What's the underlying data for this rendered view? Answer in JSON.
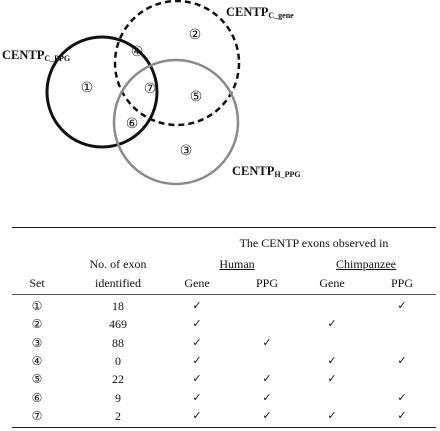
{
  "venn": {
    "sets": [
      {
        "main": "CENTP",
        "sub": "C_PPG",
        "stroke": "#111111",
        "style": "solid"
      },
      {
        "main": "CENTP",
        "sub": "C_gene",
        "stroke": "#111111",
        "style": "dashed"
      },
      {
        "main": "CENTP",
        "sub": "H_PPG",
        "stroke": "#8a8a8a",
        "style": "solid"
      }
    ],
    "regions": [
      "①",
      "②",
      "③",
      "④",
      "⑤",
      "⑥",
      "⑦"
    ]
  },
  "table": {
    "header_span": "The CENTP exons observed in",
    "col_set": "Set",
    "col_count_line1": "No. of exon",
    "col_count_line2": "identified",
    "group_human": "Human",
    "group_chimp": "Chimpanzee",
    "sub_gene": "Gene",
    "sub_ppg": "PPG",
    "check_mark": "✓",
    "rows": [
      {
        "set": "①",
        "count": "18",
        "h_gene": true,
        "h_ppg": false,
        "c_gene": false,
        "c_ppg": true
      },
      {
        "set": "②",
        "count": "469",
        "h_gene": true,
        "h_ppg": false,
        "c_gene": true,
        "c_ppg": false
      },
      {
        "set": "③",
        "count": "88",
        "h_gene": true,
        "h_ppg": true,
        "c_gene": false,
        "c_ppg": false
      },
      {
        "set": "④",
        "count": "0",
        "h_gene": true,
        "h_ppg": false,
        "c_gene": true,
        "c_ppg": true
      },
      {
        "set": "⑤",
        "count": "22",
        "h_gene": true,
        "h_ppg": true,
        "c_gene": true,
        "c_ppg": false
      },
      {
        "set": "⑥",
        "count": "9",
        "h_gene": true,
        "h_ppg": true,
        "c_gene": false,
        "c_ppg": true
      },
      {
        "set": "⑦",
        "count": "2",
        "h_gene": true,
        "h_ppg": true,
        "c_gene": true,
        "c_ppg": true
      }
    ]
  }
}
